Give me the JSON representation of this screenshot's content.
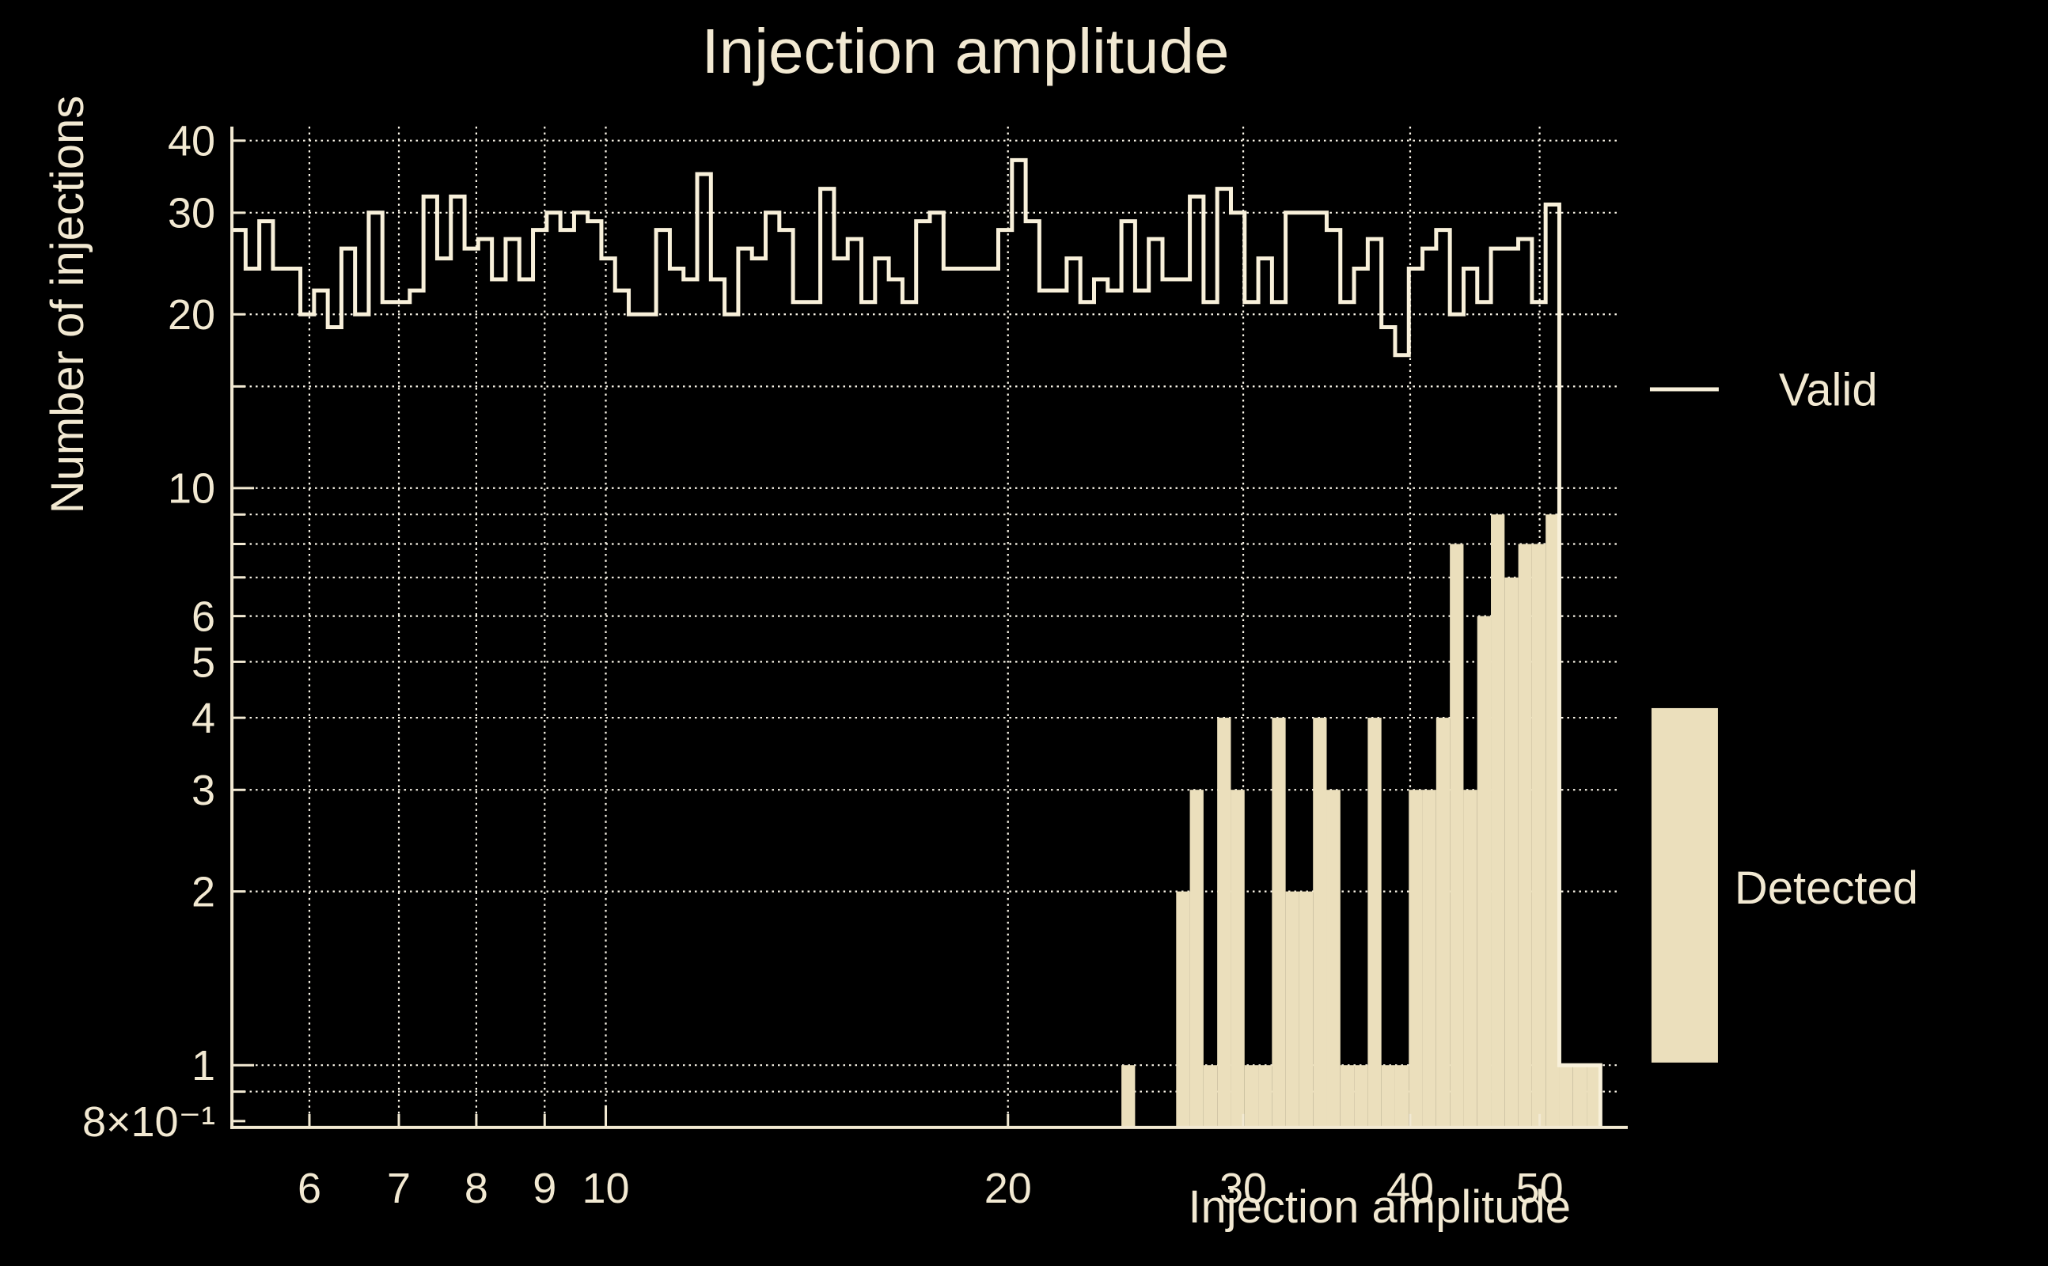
{
  "title": "Injection amplitude",
  "colors": {
    "background": "#000000",
    "text": "#f2e9d2",
    "valid_line": "#f8f0da",
    "detected_fill": "#ebdfbc",
    "gridline": "#fcf7ea",
    "axis": "#f2e9d2"
  },
  "legend": {
    "valid_label": "Valid",
    "detected_label": "Detected"
  },
  "chart_data": {
    "type": "histogram",
    "title": "Injection amplitude",
    "xlabel": "Injection amplitude",
    "ylabel": "Number of injections",
    "x_scale": "log",
    "y_scale": "log",
    "x_range": [
      5.25,
      58.2
    ],
    "y_range": [
      0.78,
      42.3
    ],
    "n_bins": 102,
    "bin_spacing": "log-uniform",
    "grid": true,
    "legend_position": "right",
    "x_ticks": [
      {
        "value": 6,
        "label": "6",
        "major": false
      },
      {
        "value": 7,
        "label": "7",
        "major": false
      },
      {
        "value": 8,
        "label": "8",
        "major": false
      },
      {
        "value": 9,
        "label": "9",
        "major": false
      },
      {
        "value": 10,
        "label": "10",
        "major": true
      },
      {
        "value": 20,
        "label": "20",
        "major": false
      },
      {
        "value": 30,
        "label": "30",
        "major": false
      },
      {
        "value": 40,
        "label": "40",
        "major": false
      },
      {
        "value": 50,
        "label": "50",
        "major": false
      }
    ],
    "y_ticks": [
      {
        "value": 40,
        "label": "40",
        "major": false
      },
      {
        "value": 30,
        "label": "30",
        "major": false
      },
      {
        "value": 20,
        "label": "20",
        "major": false
      },
      {
        "value": 15,
        "label": "",
        "major": false
      },
      {
        "value": 10,
        "label": "10",
        "major": true
      },
      {
        "value": 9,
        "label": "",
        "major": false
      },
      {
        "value": 8,
        "label": "",
        "major": false
      },
      {
        "value": 7,
        "label": "",
        "major": false
      },
      {
        "value": 6,
        "label": "6",
        "major": false
      },
      {
        "value": 5,
        "label": "5",
        "major": false
      },
      {
        "value": 4,
        "label": "4",
        "major": false
      },
      {
        "value": 3,
        "label": "3",
        "major": false
      },
      {
        "value": 2,
        "label": "2",
        "major": false
      },
      {
        "value": 1,
        "label": "1",
        "major": true
      },
      {
        "value": 0.9,
        "label": "",
        "major": false
      },
      {
        "value": 0.8,
        "label": "8×10⁻¹",
        "major": false
      }
    ],
    "x_gridlines": [
      6,
      7,
      8,
      9,
      10,
      20,
      30,
      40,
      50
    ],
    "y_gridlines": [
      40,
      30,
      20,
      15,
      10,
      9,
      8,
      7,
      6,
      5,
      4,
      3,
      2,
      1,
      0.9
    ],
    "series": [
      {
        "name": "Valid",
        "style": "step-outline",
        "values": [
          28,
          24,
          29,
          24,
          24,
          20,
          22,
          19,
          26,
          20,
          30,
          21,
          21,
          22,
          32,
          25,
          32,
          26,
          27,
          23,
          27,
          23,
          28,
          30,
          28,
          30,
          29,
          25,
          22,
          20,
          20,
          28,
          24,
          23,
          35,
          23,
          20,
          26,
          25,
          30,
          28,
          21,
          21,
          33,
          25,
          27,
          21,
          25,
          23,
          21,
          29,
          30,
          24,
          24,
          24,
          24,
          28,
          37,
          29,
          22,
          22,
          25,
          21,
          23,
          22,
          29,
          22,
          27,
          23,
          23,
          32,
          21,
          33,
          30,
          21,
          25,
          21,
          30,
          30,
          30,
          28,
          21,
          24,
          27,
          19,
          17,
          24,
          26,
          28,
          20,
          24,
          21,
          26,
          26,
          27,
          21,
          31,
          1,
          1,
          1,
          0,
          0
        ]
      },
      {
        "name": "Detected",
        "style": "filled-bars",
        "values": [
          0,
          0,
          0,
          0,
          0,
          0,
          0,
          0,
          0,
          0,
          0,
          0,
          0,
          0,
          0,
          0,
          0,
          0,
          0,
          0,
          0,
          0,
          0,
          0,
          0,
          0,
          0,
          0,
          0,
          0,
          0,
          0,
          0,
          0,
          0,
          0,
          0,
          0,
          0,
          0,
          0,
          0,
          0,
          0,
          0,
          0,
          0,
          0,
          0,
          0,
          0,
          0,
          0,
          0,
          0,
          0,
          0,
          0,
          0,
          0,
          0,
          0,
          0,
          0,
          0,
          1,
          0,
          0,
          0,
          2,
          3,
          1,
          4,
          3,
          1,
          1,
          4,
          2,
          2,
          4,
          3,
          1,
          1,
          4,
          1,
          1,
          3,
          3,
          4,
          8,
          3,
          6,
          9,
          7,
          8,
          8,
          9,
          1,
          1,
          1,
          0,
          0
        ]
      }
    ]
  }
}
